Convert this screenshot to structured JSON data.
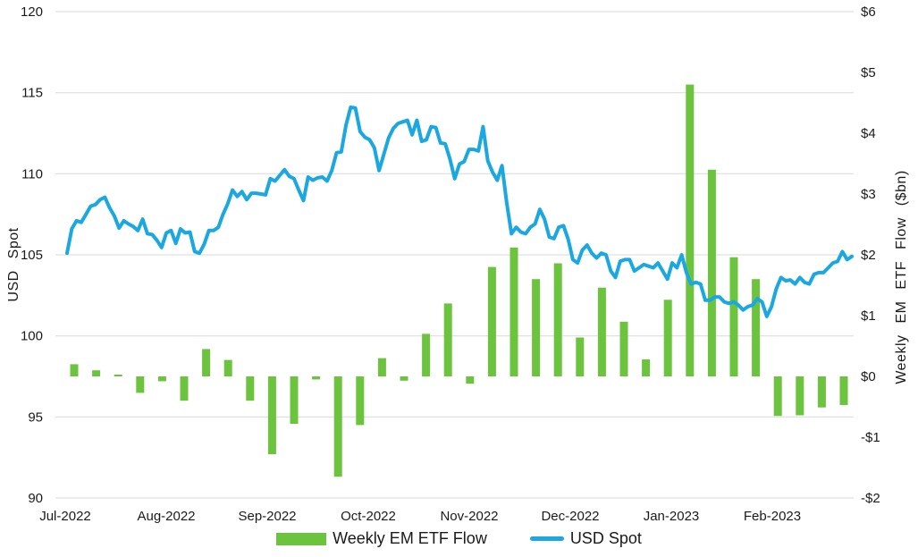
{
  "chart_data": {
    "type": "combo",
    "title": "",
    "ylabel_left": "USD Spot",
    "ylabel_right": "Weekly EM ETF Flow ($bn)",
    "grid": "horizontal",
    "legend_position": "bottom-center",
    "colors": {
      "bar": "#6CC33E",
      "line": "#1BA8E0",
      "gridline": "#d9d9d9",
      "text": "#1a1a1a"
    },
    "left_axis": {
      "min": 90,
      "max": 120,
      "ticks": [
        120,
        115,
        110,
        105,
        100,
        95,
        90
      ]
    },
    "right_axis": {
      "min": -2,
      "max": 6,
      "tick_values": [
        6,
        5,
        4,
        3,
        2,
        1,
        0,
        -1,
        -2
      ],
      "tick_labels": [
        "$6",
        "$5",
        "$4",
        "$3",
        "$2",
        "$1",
        "$0",
        "-$1",
        "-$2"
      ]
    },
    "x_months": [
      "Jul-2022",
      "Aug-2022",
      "Sep-2022",
      "Oct-2022",
      "Nov-2022",
      "Dec-2022",
      "Jan-2023",
      "Feb-2023"
    ],
    "legend": [
      {
        "label": "Weekly EM ETF Flow",
        "type": "bar",
        "color": "#6CC33E"
      },
      {
        "label": "USD Spot",
        "type": "line",
        "color": "#1BA8E0"
      }
    ],
    "series": [
      {
        "name": "Weekly EM ETF Flow",
        "type": "bar",
        "axis": "right",
        "unit": "$bn",
        "color": "#6CC33E",
        "cadence": "weekly",
        "values": [
          0.2,
          0.1,
          0.03,
          -0.27,
          -0.08,
          -0.4,
          0.45,
          0.27,
          -0.4,
          -1.28,
          -0.78,
          -0.05,
          -1.65,
          -0.8,
          0.3,
          -0.07,
          0.7,
          1.2,
          -0.12,
          1.8,
          2.12,
          1.6,
          1.86,
          0.64,
          1.46,
          0.9,
          0.28,
          1.26,
          4.8,
          3.4,
          1.96,
          1.6,
          -0.65,
          -0.64,
          -0.51,
          -0.47
        ]
      },
      {
        "name": "USD Spot",
        "type": "line",
        "axis": "left",
        "color": "#1BA8E0",
        "cadence": "daily",
        "values": [
          105.1,
          106.6,
          107.1,
          107.0,
          107.5,
          108.0,
          108.1,
          108.4,
          108.55,
          107.9,
          107.4,
          106.65,
          107.1,
          106.9,
          106.75,
          106.5,
          107.2,
          106.3,
          106.25,
          105.9,
          105.45,
          106.35,
          106.5,
          105.7,
          106.6,
          106.35,
          106.4,
          105.2,
          105.1,
          105.65,
          106.5,
          106.5,
          106.7,
          107.5,
          108.15,
          109.0,
          108.6,
          108.9,
          108.4,
          108.8,
          108.8,
          108.75,
          108.7,
          109.7,
          109.55,
          109.9,
          110.25,
          109.85,
          109.7,
          109.0,
          108.35,
          109.8,
          109.6,
          109.75,
          109.8,
          109.55,
          110.2,
          111.3,
          111.35,
          113.0,
          114.1,
          114.05,
          112.6,
          112.25,
          112.1,
          111.6,
          110.2,
          111.2,
          112.2,
          112.8,
          113.1,
          113.2,
          113.3,
          112.4,
          113.3,
          112.0,
          112.1,
          112.9,
          112.85,
          111.9,
          111.85,
          110.9,
          109.7,
          110.6,
          110.75,
          111.5,
          111.5,
          111.4,
          112.9,
          110.8,
          110.1,
          109.6,
          110.5,
          108.2,
          106.3,
          106.7,
          106.4,
          106.3,
          106.7,
          106.9,
          107.8,
          107.2,
          106.1,
          106.0,
          106.7,
          106.8,
          105.95,
          104.7,
          104.5,
          105.3,
          105.6,
          105.1,
          104.8,
          105.1,
          105.0,
          104.0,
          103.6,
          104.6,
          104.7,
          104.7,
          104.0,
          104.2,
          104.4,
          104.3,
          104.2,
          104.5,
          104.0,
          103.5,
          104.5,
          104.2,
          105.0,
          103.9,
          103.2,
          103.3,
          103.2,
          102.2,
          102.2,
          102.4,
          102.4,
          102.1,
          102.0,
          102.1,
          101.9,
          101.6,
          101.8,
          101.9,
          102.3,
          102.1,
          101.2,
          101.8,
          102.9,
          103.6,
          103.4,
          103.45,
          103.2,
          103.6,
          103.3,
          103.2,
          103.8,
          103.9,
          103.9,
          104.2,
          104.5,
          104.6,
          105.2,
          104.7,
          104.9
        ]
      }
    ]
  }
}
